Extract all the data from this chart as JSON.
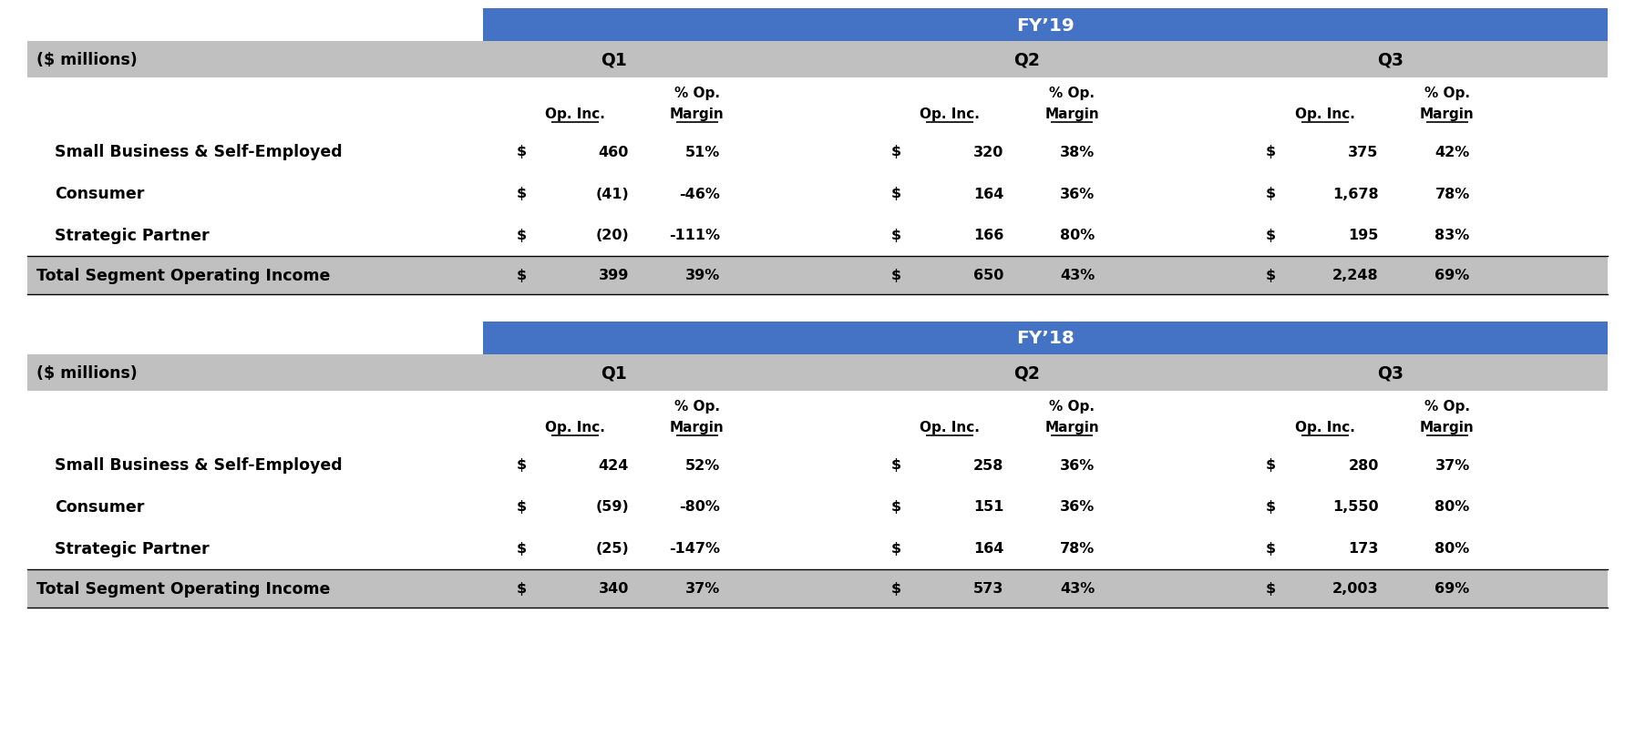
{
  "fig_width": 17.94,
  "fig_height": 8.2,
  "dpi": 100,
  "blue_header_color": "#4472C4",
  "light_gray_color": "#C0C0C0",
  "white_color": "#FFFFFF",
  "black_color": "#000000",
  "fy19": {
    "year_label": "FY’19",
    "rows": [
      {
        "label": "Small Business & Self-Employed",
        "bold": false,
        "q1_dollar": "$",
        "q1_val": "460",
        "q1_pct": "51%",
        "q2_dollar": "$",
        "q2_val": "320",
        "q2_pct": "38%",
        "q3_dollar": "$",
        "q3_val": "375",
        "q3_pct": "42%"
      },
      {
        "label": "Consumer",
        "bold": false,
        "q1_dollar": "$",
        "q1_val": "(41)",
        "q1_pct": "-46%",
        "q2_dollar": "$",
        "q2_val": "164",
        "q2_pct": "36%",
        "q3_dollar": "$",
        "q3_val": "1,678",
        "q3_pct": "78%"
      },
      {
        "label": "Strategic Partner",
        "bold": false,
        "q1_dollar": "$",
        "q1_val": "(20)",
        "q1_pct": "-111%",
        "q2_dollar": "$",
        "q2_val": "166",
        "q2_pct": "80%",
        "q3_dollar": "$",
        "q3_val": "195",
        "q3_pct": "83%"
      },
      {
        "label": "Total Segment Operating Income",
        "bold": true,
        "q1_dollar": "$",
        "q1_val": "399",
        "q1_pct": "39%",
        "q2_dollar": "$",
        "q2_val": "650",
        "q2_pct": "43%",
        "q3_dollar": "$",
        "q3_val": "2,248",
        "q3_pct": "69%"
      }
    ]
  },
  "fy18": {
    "year_label": "FY’18",
    "rows": [
      {
        "label": "Small Business & Self-Employed",
        "bold": false,
        "q1_dollar": "$",
        "q1_val": "424",
        "q1_pct": "52%",
        "q2_dollar": "$",
        "q2_val": "258",
        "q2_pct": "36%",
        "q3_dollar": "$",
        "q3_val": "280",
        "q3_pct": "37%"
      },
      {
        "label": "Consumer",
        "bold": false,
        "q1_dollar": "$",
        "q1_val": "(59)",
        "q1_pct": "-80%",
        "q2_dollar": "$",
        "q2_val": "151",
        "q2_pct": "36%",
        "q3_dollar": "$",
        "q3_val": "1,550",
        "q3_pct": "80%"
      },
      {
        "label": "Strategic Partner",
        "bold": false,
        "q1_dollar": "$",
        "q1_val": "(25)",
        "q1_pct": "-147%",
        "q2_dollar": "$",
        "q2_val": "164",
        "q2_pct": "78%",
        "q3_dollar": "$",
        "q3_val": "173",
        "q3_pct": "80%"
      },
      {
        "label": "Total Segment Operating Income",
        "bold": true,
        "q1_dollar": "$",
        "q1_val": "340",
        "q1_pct": "37%",
        "q2_dollar": "$",
        "q2_val": "573",
        "q2_pct": "43%",
        "q3_dollar": "$",
        "q3_val": "2,003",
        "q3_pct": "69%"
      }
    ]
  }
}
